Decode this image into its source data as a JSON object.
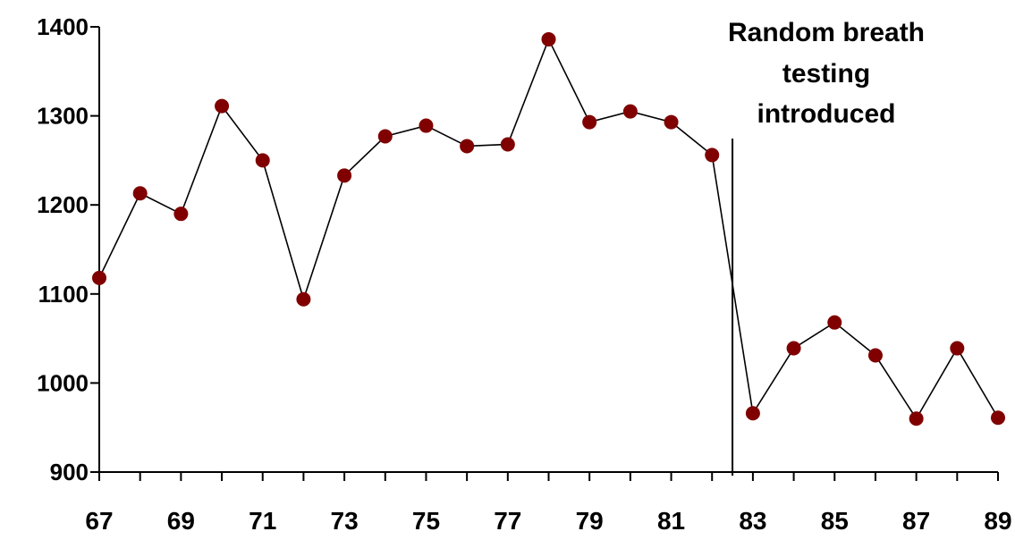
{
  "chart_data": {
    "type": "line",
    "title": "",
    "xlabel": "",
    "ylabel": "",
    "ylim": [
      900,
      1400
    ],
    "xlim": [
      67,
      89
    ],
    "yticks": [
      900,
      1000,
      1100,
      1200,
      1300,
      1400
    ],
    "ytick_labels": [
      "900",
      "1000",
      "1100",
      "1200",
      "1300",
      "1400"
    ],
    "xtick_labels": [
      "67",
      "69",
      "71",
      "73",
      "75",
      "77",
      "79",
      "81",
      "83",
      "85",
      "87",
      "89"
    ],
    "x": [
      67,
      68,
      69,
      70,
      71,
      72,
      73,
      74,
      75,
      76,
      77,
      78,
      79,
      80,
      81,
      82,
      83,
      84,
      85,
      86,
      87,
      88,
      89
    ],
    "series": [
      {
        "values": [
          1118,
          1213,
          1190,
          1311,
          1250,
          1094,
          1233,
          1277,
          1289,
          1266,
          1268,
          1386,
          1293,
          1305,
          1293,
          1256,
          966,
          1039,
          1068,
          1031,
          960,
          1039,
          961
        ],
        "line_color": "#000000",
        "marker_color": "#800000"
      }
    ],
    "annotation": {
      "lines": [
        "Random breath",
        "testing",
        "introduced"
      ],
      "x": 82.5
    },
    "grid": false,
    "legend": "none"
  }
}
